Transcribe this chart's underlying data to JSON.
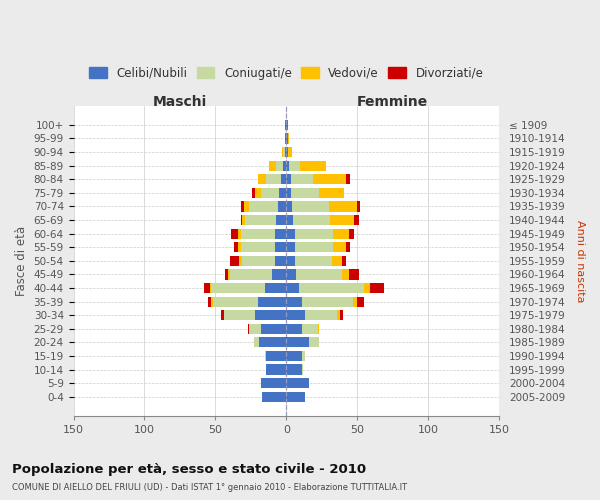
{
  "age_groups": [
    "100+",
    "95-99",
    "90-94",
    "85-89",
    "80-84",
    "75-79",
    "70-74",
    "65-69",
    "60-64",
    "55-59",
    "50-54",
    "45-49",
    "40-44",
    "35-39",
    "30-34",
    "25-29",
    "20-24",
    "15-19",
    "10-14",
    "5-9",
    "0-4"
  ],
  "birth_years": [
    "≤ 1909",
    "1910-1914",
    "1915-1919",
    "1920-1924",
    "1925-1929",
    "1930-1934",
    "1935-1939",
    "1940-1944",
    "1945-1949",
    "1950-1954",
    "1955-1959",
    "1960-1964",
    "1965-1969",
    "1970-1974",
    "1975-1979",
    "1980-1984",
    "1985-1989",
    "1990-1994",
    "1995-1999",
    "2000-2004",
    "2005-2009"
  ],
  "maschi_celibi": [
    1,
    1,
    1,
    2,
    4,
    5,
    6,
    7,
    8,
    8,
    8,
    10,
    15,
    20,
    22,
    18,
    19,
    14,
    14,
    18,
    17
  ],
  "maschi_coniugati": [
    0,
    0,
    1,
    5,
    10,
    13,
    20,
    22,
    24,
    24,
    23,
    30,
    38,
    32,
    22,
    8,
    4,
    1,
    0,
    0,
    0
  ],
  "maschi_vedovi": [
    0,
    0,
    1,
    5,
    6,
    4,
    4,
    2,
    2,
    2,
    2,
    1,
    1,
    1,
    0,
    0,
    0,
    0,
    0,
    0,
    0
  ],
  "maschi_divorziati": [
    0,
    0,
    0,
    0,
    0,
    2,
    2,
    1,
    5,
    3,
    7,
    2,
    4,
    2,
    2,
    1,
    0,
    0,
    0,
    0,
    0
  ],
  "femmine_nubili": [
    1,
    1,
    1,
    2,
    3,
    3,
    4,
    5,
    6,
    6,
    6,
    7,
    9,
    11,
    13,
    11,
    16,
    11,
    11,
    16,
    13
  ],
  "femmine_coniugate": [
    0,
    0,
    0,
    8,
    16,
    20,
    26,
    26,
    27,
    27,
    26,
    32,
    46,
    36,
    23,
    11,
    7,
    2,
    1,
    0,
    0
  ],
  "femmine_vedove": [
    0,
    1,
    3,
    18,
    23,
    18,
    20,
    17,
    11,
    9,
    7,
    5,
    4,
    3,
    2,
    1,
    0,
    0,
    0,
    0,
    0
  ],
  "femmine_divorziate": [
    0,
    0,
    0,
    0,
    3,
    0,
    2,
    3,
    4,
    3,
    3,
    7,
    10,
    5,
    2,
    0,
    0,
    0,
    0,
    0,
    0
  ],
  "xlim": 150,
  "color_celibi": "#4472c4",
  "color_coniugati": "#c5d9a0",
  "color_vedovi": "#ffc000",
  "color_divorziati": "#cc0000",
  "title": "Popolazione per età, sesso e stato civile - 2010",
  "subtitle": "COMUNE DI AIELLO DEL FRIULI (UD) - Dati ISTAT 1° gennaio 2010 - Elaborazione TUTTITALIA.IT",
  "ylabel_left": "Fasce di età",
  "ylabel_right": "Anni di nascita",
  "label_maschi": "Maschi",
  "label_femmine": "Femmine",
  "legend_labels": [
    "Celibi/Nubili",
    "Coniugati/e",
    "Vedovi/e",
    "Divorziati/e"
  ],
  "bg_color": "#ebebeb",
  "plot_bg": "#ffffff",
  "xticks": [
    -150,
    -100,
    -50,
    0,
    50,
    100,
    150
  ]
}
